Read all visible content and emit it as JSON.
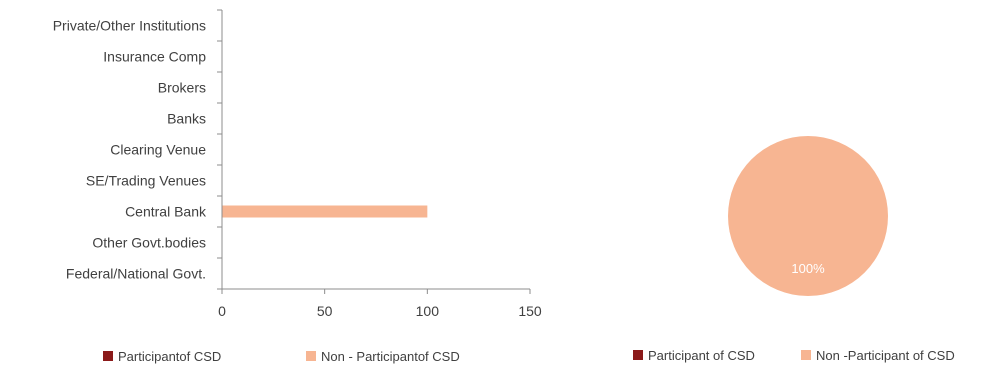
{
  "colors": {
    "participant": "#8b1a1a",
    "non_participant": "#f7b592",
    "axis": "#8c8c8c",
    "text": "#404040",
    "pie_label": "#ffffff"
  },
  "chart_data": [
    {
      "type": "bar",
      "orientation": "horizontal",
      "stacked": true,
      "categories": [
        "Private/Other Institutions",
        "Insurance Comp",
        "Brokers",
        "Banks",
        "Clearing Venue",
        "SE/Trading Venues",
        "Central Bank",
        "Other Govt.bodies",
        "Federal/National Govt."
      ],
      "series": [
        {
          "name": "Participantof CSD",
          "values": [
            0,
            0,
            0,
            0,
            0,
            0,
            0,
            0,
            0
          ]
        },
        {
          "name": "Non - Participantof CSD",
          "values": [
            0,
            0,
            0,
            0,
            0,
            0,
            100,
            0,
            0
          ]
        }
      ],
      "xlim": [
        0,
        150
      ],
      "xticks": [
        "0",
        "50",
        "100",
        "150"
      ],
      "grid": false,
      "legend_placement": "bottom"
    },
    {
      "type": "pie",
      "slices": [
        {
          "name": "Participant of CSD",
          "value": 0,
          "label": ""
        },
        {
          "name": "Non -Participant of CSD",
          "value": 100,
          "label": "100%"
        }
      ],
      "legend_placement": "bottom"
    }
  ]
}
